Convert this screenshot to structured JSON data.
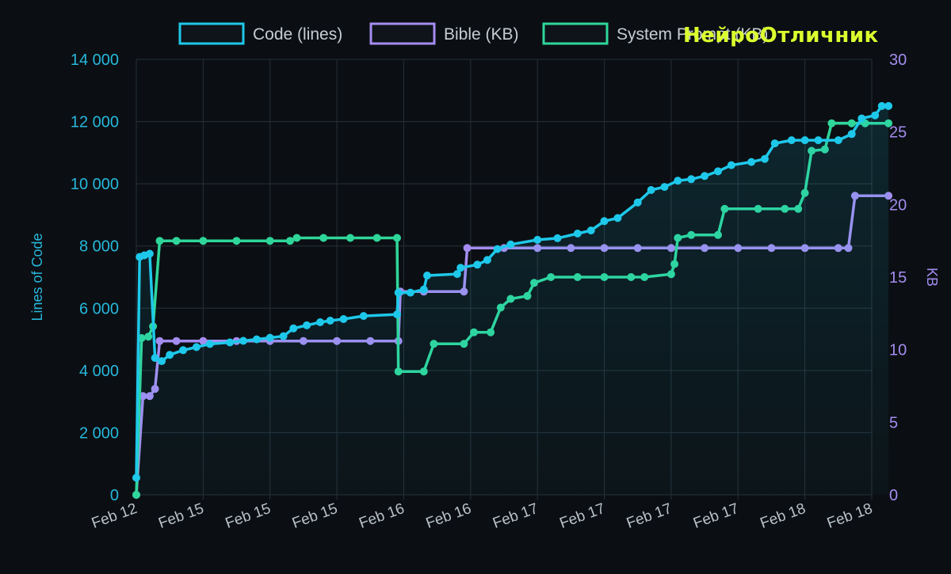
{
  "watermark": "НейроОтличник",
  "chart_data": {
    "type": "line",
    "x_tick_labels": [
      "Feb 12",
      "Feb 15",
      "Feb 15",
      "Feb 15",
      "Feb 16",
      "Feb 16",
      "Feb 17",
      "Feb 17",
      "Feb 17",
      "Feb 17",
      "Feb 18",
      "Feb 18"
    ],
    "y_left": {
      "label": "Lines of Code",
      "range": [
        0,
        14000
      ],
      "ticks": [
        "0",
        "2 000",
        "4 000",
        "6 000",
        "8 000",
        "10 000",
        "12 000",
        "14 000"
      ]
    },
    "y_right": {
      "label": "KB",
      "range": [
        0,
        30
      ],
      "ticks": [
        "0",
        "5",
        "10",
        "15",
        "20",
        "25",
        "30"
      ]
    },
    "grid": true,
    "legend_position": "top",
    "colors": {
      "code": "#1ec8ea",
      "bible": "#a58cf0",
      "system": "#2fd69a",
      "left_axis": "#27b8dc",
      "right_axis": "#a58cf0"
    },
    "series": [
      {
        "name": "Code (lines)",
        "axis": "left",
        "points": [
          [
            0,
            550
          ],
          [
            0.05,
            7650
          ],
          [
            0.12,
            7700
          ],
          [
            0.2,
            7750
          ],
          [
            0.28,
            4400
          ],
          [
            0.38,
            4300
          ],
          [
            0.5,
            4500
          ],
          [
            0.7,
            4650
          ],
          [
            0.9,
            4750
          ],
          [
            1.1,
            4850
          ],
          [
            1.4,
            4900
          ],
          [
            1.6,
            4950
          ],
          [
            1.8,
            5000
          ],
          [
            2.0,
            5050
          ],
          [
            2.2,
            5100
          ],
          [
            2.35,
            5350
          ],
          [
            2.55,
            5450
          ],
          [
            2.75,
            5550
          ],
          [
            2.9,
            5600
          ],
          [
            3.1,
            5650
          ],
          [
            3.4,
            5750
          ],
          [
            3.9,
            5800
          ],
          [
            3.92,
            6500
          ],
          [
            4.1,
            6500
          ],
          [
            4.3,
            6600
          ],
          [
            4.35,
            7050
          ],
          [
            4.8,
            7100
          ],
          [
            4.85,
            7300
          ],
          [
            5.1,
            7400
          ],
          [
            5.25,
            7550
          ],
          [
            5.4,
            7900
          ],
          [
            5.6,
            8050
          ],
          [
            6.0,
            8200
          ],
          [
            6.3,
            8250
          ],
          [
            6.6,
            8400
          ],
          [
            6.8,
            8500
          ],
          [
            7.0,
            8800
          ],
          [
            7.2,
            8900
          ],
          [
            7.5,
            9400
          ],
          [
            7.7,
            9800
          ],
          [
            7.9,
            9900
          ],
          [
            8.1,
            10100
          ],
          [
            8.3,
            10150
          ],
          [
            8.5,
            10250
          ],
          [
            8.7,
            10400
          ],
          [
            8.9,
            10600
          ],
          [
            9.2,
            10700
          ],
          [
            9.4,
            10800
          ],
          [
            9.55,
            11300
          ],
          [
            9.8,
            11400
          ],
          [
            10.0,
            11400
          ],
          [
            10.2,
            11400
          ],
          [
            10.5,
            11400
          ],
          [
            10.7,
            11600
          ],
          [
            10.85,
            12100
          ],
          [
            11.05,
            12200
          ],
          [
            11.15,
            12500
          ],
          [
            11.25,
            12500
          ]
        ]
      },
      {
        "name": "Bible (KB)",
        "axis": "right",
        "points": [
          [
            0,
            0
          ],
          [
            0.1,
            6.8
          ],
          [
            0.2,
            6.8
          ],
          [
            0.28,
            7.3
          ],
          [
            0.35,
            10.6
          ],
          [
            0.6,
            10.6
          ],
          [
            1.0,
            10.6
          ],
          [
            1.5,
            10.6
          ],
          [
            2.0,
            10.6
          ],
          [
            2.5,
            10.6
          ],
          [
            3.0,
            10.6
          ],
          [
            3.5,
            10.6
          ],
          [
            3.92,
            10.6
          ],
          [
            3.95,
            14.0
          ],
          [
            4.3,
            14.0
          ],
          [
            4.9,
            14.0
          ],
          [
            4.95,
            17.0
          ],
          [
            5.5,
            17.0
          ],
          [
            6.0,
            17.0
          ],
          [
            6.5,
            17.0
          ],
          [
            7.0,
            17.0
          ],
          [
            7.5,
            17.0
          ],
          [
            8.0,
            17.0
          ],
          [
            8.5,
            17.0
          ],
          [
            9.0,
            17.0
          ],
          [
            9.5,
            17.0
          ],
          [
            10.0,
            17.0
          ],
          [
            10.5,
            17.0
          ],
          [
            10.65,
            17.0
          ],
          [
            10.75,
            20.6
          ],
          [
            11.25,
            20.6
          ]
        ]
      },
      {
        "name": "System Prompt (KB)",
        "axis": "right",
        "points": [
          [
            0,
            0
          ],
          [
            0.08,
            10.8
          ],
          [
            0.18,
            10.9
          ],
          [
            0.25,
            11.6
          ],
          [
            0.35,
            17.5
          ],
          [
            0.6,
            17.5
          ],
          [
            1.0,
            17.5
          ],
          [
            1.5,
            17.5
          ],
          [
            2.0,
            17.5
          ],
          [
            2.3,
            17.5
          ],
          [
            2.4,
            17.7
          ],
          [
            2.8,
            17.7
          ],
          [
            3.2,
            17.7
          ],
          [
            3.6,
            17.7
          ],
          [
            3.9,
            17.7
          ],
          [
            3.92,
            8.5
          ],
          [
            4.3,
            8.5
          ],
          [
            4.45,
            10.4
          ],
          [
            4.9,
            10.4
          ],
          [
            5.05,
            11.2
          ],
          [
            5.3,
            11.2
          ],
          [
            5.45,
            12.9
          ],
          [
            5.6,
            13.5
          ],
          [
            5.85,
            13.7
          ],
          [
            5.95,
            14.6
          ],
          [
            6.2,
            15.0
          ],
          [
            6.6,
            15.0
          ],
          [
            7.0,
            15.0
          ],
          [
            7.4,
            15.0
          ],
          [
            7.6,
            15.0
          ],
          [
            8.0,
            15.2
          ],
          [
            8.05,
            15.9
          ],
          [
            8.1,
            17.7
          ],
          [
            8.3,
            17.9
          ],
          [
            8.7,
            17.9
          ],
          [
            8.8,
            19.7
          ],
          [
            9.3,
            19.7
          ],
          [
            9.7,
            19.7
          ],
          [
            9.9,
            19.7
          ],
          [
            10.0,
            20.8
          ],
          [
            10.1,
            23.7
          ],
          [
            10.3,
            23.8
          ],
          [
            10.4,
            25.6
          ],
          [
            10.7,
            25.6
          ],
          [
            10.9,
            25.6
          ],
          [
            11.25,
            25.6
          ]
        ]
      }
    ]
  }
}
